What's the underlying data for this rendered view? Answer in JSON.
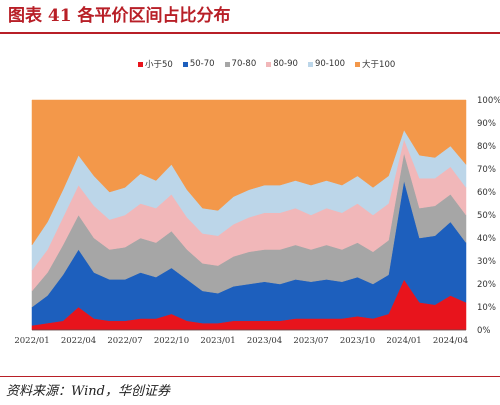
{
  "title": "图表 41  各平价区间占比分布",
  "source": "资料来源：Wind，华创证券",
  "chart_data": {
    "type": "area",
    "stacked": true,
    "percent": true,
    "categories": [
      "2022/01",
      "2022/02",
      "2022/03",
      "2022/04",
      "2022/05",
      "2022/06",
      "2022/07",
      "2022/08",
      "2022/09",
      "2022/10",
      "2022/11",
      "2022/12",
      "2023/01",
      "2023/02",
      "2023/03",
      "2023/04",
      "2023/05",
      "2023/06",
      "2023/07",
      "2023/08",
      "2023/09",
      "2023/10",
      "2023/11",
      "2023/12",
      "2024/01",
      "2024/02",
      "2024/03",
      "2024/04",
      "2024/05"
    ],
    "x_tick_labels": [
      "2022/01",
      "2022/04",
      "2022/07",
      "2022/10",
      "2023/01",
      "2023/04",
      "2023/07",
      "2023/10",
      "2024/01",
      "2024/04"
    ],
    "x_tick_index": [
      0,
      3,
      6,
      9,
      12,
      15,
      18,
      21,
      24,
      27
    ],
    "y_ticks": [
      "0%",
      "10%",
      "20%",
      "30%",
      "40%",
      "50%",
      "60%",
      "70%",
      "80%",
      "90%",
      "100%"
    ],
    "ylim": [
      0,
      100
    ],
    "legend_position": "top",
    "series": [
      {
        "name": "小于50",
        "color": "#e8141c",
        "values": [
          2,
          3,
          4,
          10,
          5,
          4,
          4,
          5,
          5,
          7,
          4,
          3,
          3,
          4,
          4,
          4,
          4,
          5,
          5,
          5,
          5,
          6,
          5,
          7,
          22,
          12,
          11,
          15,
          12
        ]
      },
      {
        "name": "50-70",
        "color": "#1d5fbd",
        "values": [
          8,
          12,
          20,
          25,
          20,
          18,
          18,
          20,
          18,
          20,
          18,
          14,
          13,
          15,
          16,
          17,
          16,
          17,
          16,
          17,
          16,
          17,
          15,
          17,
          43,
          28,
          30,
          32,
          26
        ]
      },
      {
        "name": "70-80",
        "color": "#a6a6a6",
        "values": [
          7,
          10,
          13,
          15,
          15,
          13,
          14,
          15,
          15,
          16,
          13,
          12,
          12,
          13,
          14,
          14,
          15,
          15,
          14,
          15,
          14,
          15,
          14,
          15,
          12,
          13,
          13,
          12,
          12
        ]
      },
      {
        "name": "80-90",
        "color": "#f1b7b9",
        "values": [
          9,
          10,
          12,
          13,
          14,
          13,
          14,
          15,
          15,
          16,
          14,
          13,
          13,
          14,
          15,
          16,
          16,
          16,
          15,
          16,
          16,
          17,
          16,
          16,
          6,
          13,
          12,
          12,
          12
        ]
      },
      {
        "name": "90-100",
        "color": "#bcd6e9",
        "values": [
          11,
          12,
          12,
          13,
          13,
          12,
          12,
          13,
          12,
          13,
          12,
          11,
          11,
          12,
          12,
          12,
          12,
          12,
          13,
          12,
          12,
          12,
          12,
          12,
          4,
          10,
          9,
          9,
          10
        ]
      },
      {
        "name": "大于100",
        "color": "#f3984a",
        "values": [
          63,
          53,
          39,
          24,
          33,
          40,
          38,
          32,
          35,
          28,
          39,
          47,
          48,
          42,
          39,
          37,
          37,
          35,
          37,
          35,
          37,
          33,
          38,
          33,
          13,
          24,
          25,
          20,
          28
        ]
      }
    ]
  }
}
